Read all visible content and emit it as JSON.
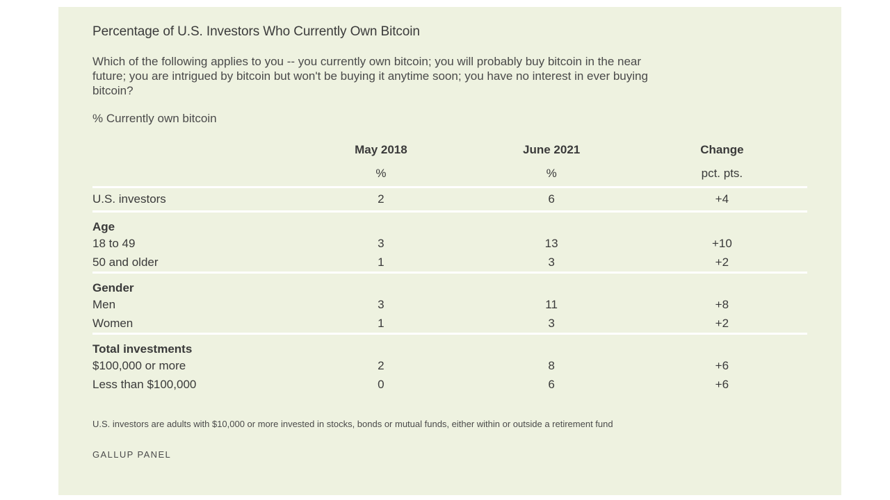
{
  "chart_data": {
    "type": "table",
    "title": "Percentage of U.S. Investors Who Currently Own Bitcoin",
    "question": "Which of the following applies to you -- you currently own bitcoin; you will probably buy bitcoin in the near future; you are intrigued by bitcoin but won't be buying it anytime soon; you have no interest in ever buying bitcoin?",
    "unit_label": "% Currently own bitcoin",
    "columns": [
      {
        "header": "May 2018",
        "subheader": "%"
      },
      {
        "header": "June 2021",
        "subheader": "%"
      },
      {
        "header": "Change",
        "subheader": "pct. pts."
      }
    ],
    "total_row": {
      "label": "U.S. investors",
      "values": [
        "2",
        "6",
        "+4"
      ]
    },
    "groups": [
      {
        "name": "Age",
        "rows": [
          {
            "label": "18 to 49",
            "values": [
              "3",
              "13",
              "+10"
            ]
          },
          {
            "label": "50 and older",
            "values": [
              "1",
              "3",
              "+2"
            ]
          }
        ]
      },
      {
        "name": "Gender",
        "rows": [
          {
            "label": "Men",
            "values": [
              "3",
              "11",
              "+8"
            ]
          },
          {
            "label": "Women",
            "values": [
              "1",
              "3",
              "+2"
            ]
          }
        ]
      },
      {
        "name": "Total investments",
        "rows": [
          {
            "label": "$100,000 or more",
            "values": [
              "2",
              "8",
              "+6"
            ]
          },
          {
            "label": "Less than $100,000",
            "values": [
              "0",
              "6",
              "+6"
            ]
          }
        ]
      }
    ],
    "footnote": "U.S. investors are adults with $10,000 or more invested in stocks, bonds or mutual funds, either within or outside a retirement fund",
    "source": "GALLUP PANEL"
  }
}
